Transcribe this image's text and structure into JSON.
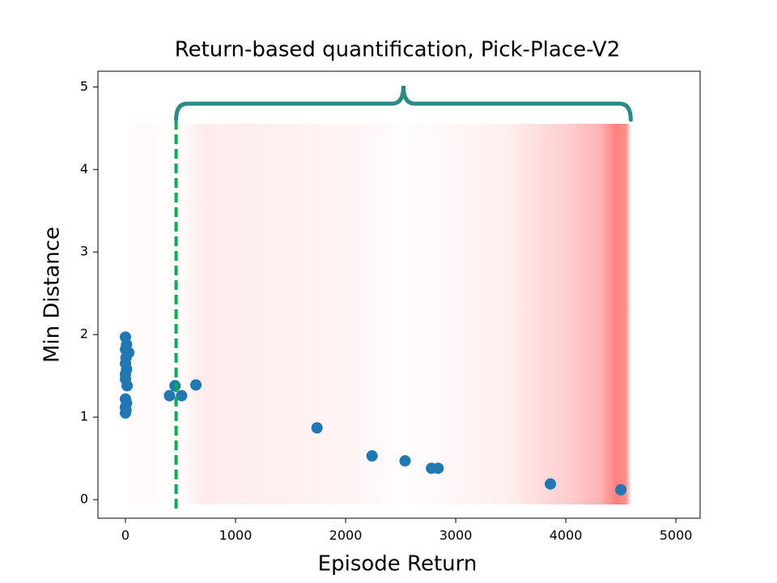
{
  "chart_data": {
    "type": "scatter",
    "title": "Return-based quantification, Pick-Place-V2",
    "x_label": "Episode Return",
    "y_label": "Min Distance",
    "color": "#1f77b4",
    "x": [
      0,
      10,
      0,
      30,
      5,
      0,
      10,
      0,
      0,
      15,
      0,
      10,
      0,
      5,
      0,
      400,
      450,
      510,
      640,
      1740,
      2240,
      2540,
      2780,
      2840,
      3860,
      4500
    ],
    "values": [
      1.97,
      1.88,
      1.82,
      1.78,
      1.72,
      1.65,
      1.58,
      1.52,
      1.46,
      1.38,
      1.22,
      1.17,
      1.12,
      1.08,
      1.05,
      1.26,
      1.38,
      1.26,
      1.39,
      0.87,
      0.53,
      0.47,
      0.38,
      0.38,
      0.19,
      0.12
    ],
    "xlim": [
      -250,
      5220
    ],
    "ylim": [
      -0.225,
      5.19
    ],
    "xticks": [
      0,
      1000,
      2000,
      3000,
      4000,
      5000
    ],
    "yticks": [
      0,
      1,
      2,
      3,
      4,
      5
    ],
    "threshold": 460,
    "threshold_color": "#00b050",
    "shaded_range": [
      30,
      4590
    ],
    "brace_color": "#2a8a85"
  }
}
